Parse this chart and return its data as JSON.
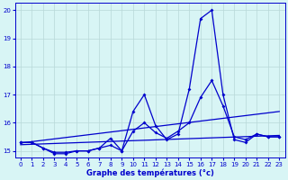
{
  "xlabel": "Graphe des températures (°c)",
  "bg_color": "#d8f5f5",
  "grid_color": "#b8d8d8",
  "line_color": "#0000cc",
  "xlim": [
    -0.5,
    23.5
  ],
  "ylim": [
    14.75,
    20.25
  ],
  "yticks": [
    15,
    16,
    17,
    18,
    19,
    20
  ],
  "xticks": [
    0,
    1,
    2,
    3,
    4,
    5,
    6,
    7,
    8,
    9,
    10,
    11,
    12,
    13,
    14,
    15,
    16,
    17,
    18,
    19,
    20,
    21,
    22,
    23
  ],
  "hours": [
    0,
    1,
    2,
    3,
    4,
    5,
    6,
    7,
    8,
    9,
    10,
    11,
    12,
    13,
    14,
    15,
    16,
    17,
    18,
    19,
    20,
    21,
    22,
    23
  ],
  "series1": [
    15.3,
    15.3,
    15.1,
    14.9,
    14.9,
    15.0,
    15.0,
    15.1,
    15.2,
    15.0,
    16.4,
    17.0,
    15.9,
    15.4,
    15.6,
    17.2,
    19.7,
    20.0,
    17.0,
    15.4,
    15.3,
    15.6,
    15.5,
    15.5
  ],
  "series2": [
    15.3,
    15.3,
    15.1,
    14.95,
    14.95,
    15.0,
    15.0,
    15.1,
    15.45,
    15.0,
    15.7,
    16.0,
    15.65,
    15.45,
    15.7,
    16.0,
    16.9,
    17.5,
    16.6,
    15.5,
    15.4,
    15.6,
    15.5,
    15.5
  ],
  "trend1_x": [
    0,
    23
  ],
  "trend1_y": [
    15.28,
    16.4
  ],
  "trend2_x": [
    0,
    23
  ],
  "trend2_y": [
    15.22,
    15.55
  ],
  "marker_size": 2.0,
  "linewidth": 0.9,
  "trend_linewidth": 0.9
}
